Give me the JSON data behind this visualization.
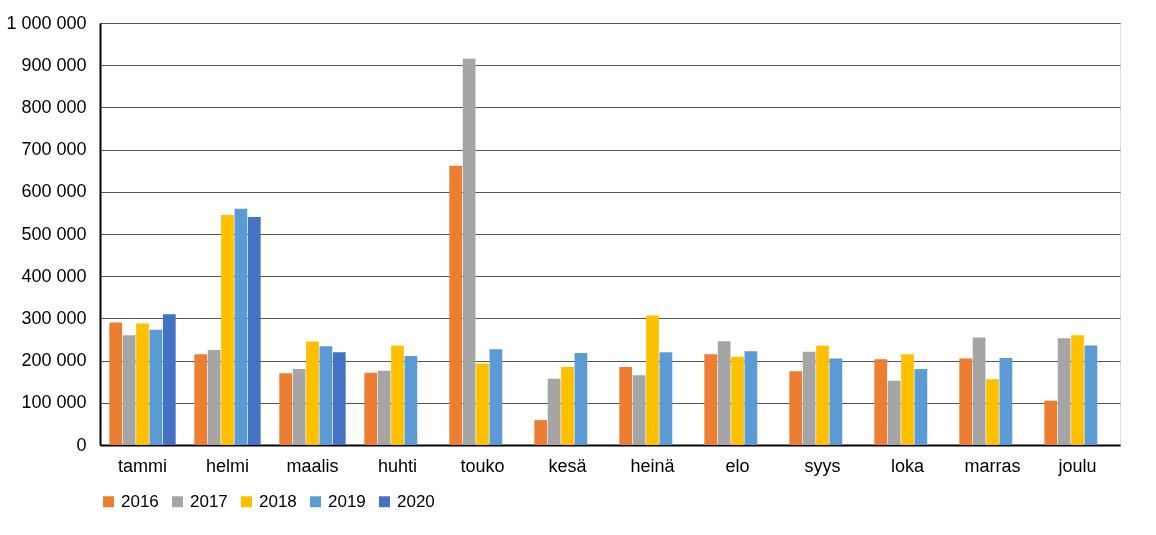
{
  "chart_data": {
    "type": "bar",
    "categories": [
      "tammi",
      "helmi",
      "maalis",
      "huhti",
      "touko",
      "kesä",
      "heinä",
      "elo",
      "syys",
      "loka",
      "marras",
      "joulu"
    ],
    "series": [
      {
        "name": "2016",
        "color": "#ed7d31",
        "values": [
          290000,
          215000,
          170000,
          171000,
          662000,
          59000,
          185000,
          215000,
          175000,
          203000,
          205000,
          105000
        ]
      },
      {
        "name": "2017",
        "color": "#a5a5a5",
        "values": [
          260000,
          225000,
          180000,
          176000,
          915000,
          157000,
          165000,
          246000,
          221000,
          152000,
          255000,
          253000
        ]
      },
      {
        "name": "2018",
        "color": "#ffc000",
        "values": [
          288000,
          545000,
          245000,
          235000,
          193000,
          185000,
          307000,
          209000,
          235000,
          215000,
          156000,
          260000
        ]
      },
      {
        "name": "2019",
        "color": "#5b9bd5",
        "values": [
          273000,
          560000,
          234000,
          211000,
          227000,
          218000,
          220000,
          222000,
          205000,
          180000,
          206000,
          236000
        ]
      },
      {
        "name": "2020",
        "color": "#4472c4",
        "values": [
          310000,
          540000,
          220000,
          null,
          null,
          null,
          null,
          null,
          null,
          null,
          null,
          null
        ]
      }
    ],
    "ylim": [
      0,
      1000000
    ],
    "yticks": [
      0,
      {
        "value": 100000,
        "label": "100 000"
      },
      {
        "value": 200000,
        "label": "200 000"
      },
      {
        "value": 300000,
        "label": "300 000"
      },
      {
        "value": 400000,
        "label": "400 000"
      },
      {
        "value": 500000,
        "label": "500 000"
      },
      {
        "value": 600000,
        "label": "600 000"
      },
      {
        "value": 700000,
        "label": "700 000"
      },
      {
        "value": 800000,
        "label": "800 000"
      },
      {
        "value": 900000,
        "label": "900 000"
      },
      {
        "value": 1000000,
        "label": "1 000 000"
      }
    ],
    "grid": "y",
    "legend": "bottom"
  }
}
